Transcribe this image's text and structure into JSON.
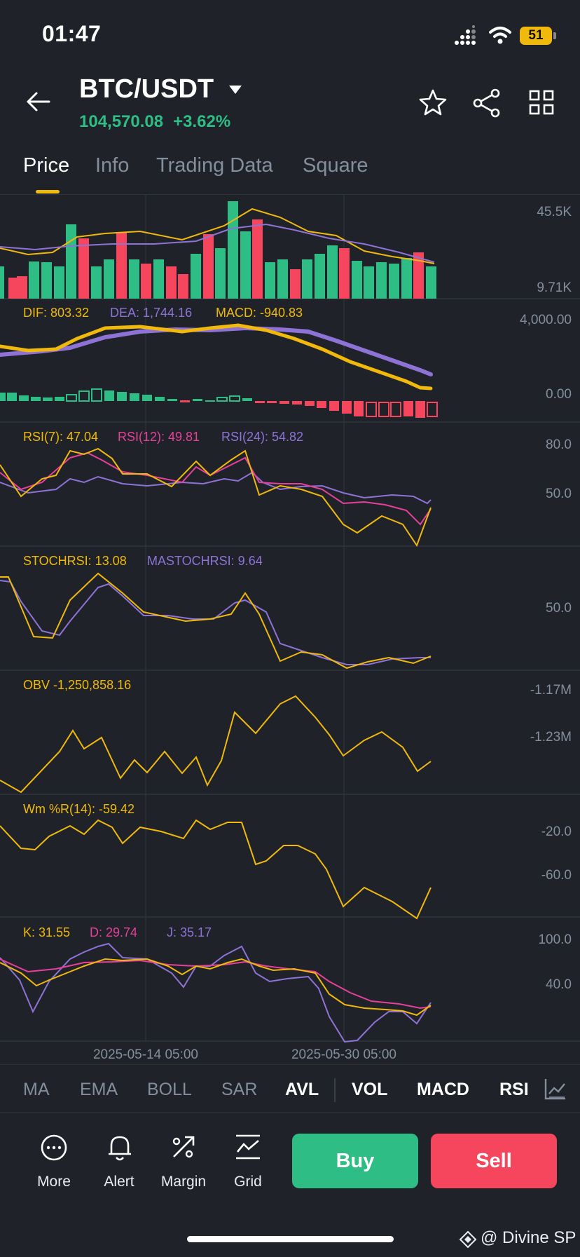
{
  "status_bar": {
    "time": "01:47",
    "battery": "51"
  },
  "header": {
    "pair": "BTC/USDT",
    "price": "104,570.08",
    "change": "+3.62%"
  },
  "tabs": [
    "Price",
    "Info",
    "Trading Data",
    "Square"
  ],
  "axes": {
    "vol_top": "45.5K",
    "vol_bottom": "9.71K",
    "macd_top": "4,000.00",
    "macd_zero": "0.00",
    "rsi_80": "80.0",
    "rsi_50": "50.0",
    "stoch_50": "50.0",
    "obv_1": "-1.17M",
    "obv_2": "-1.23M",
    "wr_1": "-20.0",
    "wr_2": "-60.0",
    "kdj_1": "100.0",
    "kdj_2": "40.0",
    "date_1": "2025-05-14 05:00",
    "date_2": "2025-05-30 05:00"
  },
  "legends": {
    "dif": "DIF: 803.32",
    "dea": "DEA: 1,744.16",
    "macd": "MACD: -940.83",
    "rsi7": "RSI(7): 47.04",
    "rsi12": "RSI(12): 49.81",
    "rsi24": "RSI(24): 54.82",
    "stochrsi": "STOCHRSI: 13.08",
    "mastochrsi": "MASTOCHRSI: 9.64",
    "obv": "OBV -1,250,858.16",
    "wr": "Wm %R(14): -59.42",
    "k": "K: 31.55",
    "d": "D: 29.74",
    "j": "J: 35.17"
  },
  "indicator_tabs": {
    "main": [
      "MA",
      "EMA",
      "BOLL",
      "SAR",
      "AVL"
    ],
    "sub": [
      "VOL",
      "MACD",
      "RSI"
    ]
  },
  "bottom_bar": {
    "more": "More",
    "alert": "Alert",
    "margin": "Margin",
    "grid": "Grid",
    "buy": "Buy",
    "sell": "Sell"
  },
  "watermark": "@ Divine SP",
  "colors": {
    "up": "#2ebd85",
    "down": "#f6465d",
    "accent": "#f0b90b",
    "purple": "#8e72d6",
    "pink": "#e6409a"
  },
  "icons": [
    "back-arrow-icon",
    "dropdown-caret-icon",
    "star-icon",
    "share-icon",
    "grid-layout-icon",
    "more-icon",
    "bell-icon",
    "margin-icon",
    "grid-bot-icon",
    "chart-settings-icon"
  ]
}
